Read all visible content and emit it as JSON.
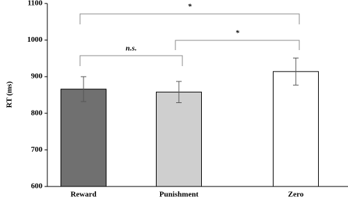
{
  "chart_data": {
    "type": "bar",
    "y_label": "RT (ms)",
    "categories": [
      "Reward",
      "Punishment",
      "Zero"
    ],
    "values": [
      866,
      858,
      914
    ],
    "errors": [
      34,
      29,
      37
    ],
    "colors": [
      "#707070",
      "#cfcfcf",
      "#ffffff"
    ],
    "ylim": [
      600,
      1100
    ],
    "yticks": [
      600,
      700,
      800,
      900,
      1000,
      1100
    ],
    "annotations": [
      {
        "text": "*",
        "from": 0,
        "to": 2
      },
      {
        "text": "n.s.",
        "from": 0,
        "to": 1
      },
      {
        "text": "*",
        "from": 1,
        "to": 2
      }
    ]
  }
}
